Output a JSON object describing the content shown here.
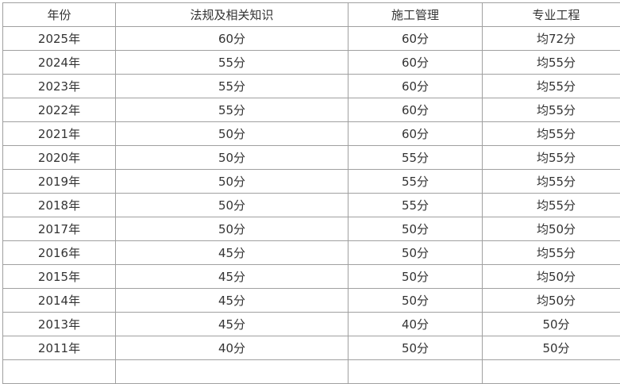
{
  "table": {
    "headers": [
      "年份",
      "法规及相关知识",
      "施工管理",
      "专业工程"
    ],
    "rows": [
      [
        "2025年",
        "60分",
        "60分",
        "均72分"
      ],
      [
        "2024年",
        "55分",
        "60分",
        "均55分"
      ],
      [
        "2023年",
        "55分",
        "60分",
        "均55分"
      ],
      [
        "2022年",
        "55分",
        "60分",
        "均55分"
      ],
      [
        "2021年",
        "50分",
        "60分",
        "均55分"
      ],
      [
        "2020年",
        "50分",
        "55分",
        "均55分"
      ],
      [
        "2019年",
        "50分",
        "55分",
        "均55分"
      ],
      [
        "2018年",
        "50分",
        "55分",
        "均55分"
      ],
      [
        "2017年",
        "50分",
        "50分",
        "均50分"
      ],
      [
        "2016年",
        "45分",
        "50分",
        "均55分"
      ],
      [
        "2015年",
        "45分",
        "50分",
        "均50分"
      ],
      [
        "2014年",
        "45分",
        "50分",
        "均50分"
      ],
      [
        "2013年",
        "45分",
        "40分",
        "50分"
      ],
      [
        "2011年",
        "40分",
        "50分",
        "50分"
      ]
    ]
  }
}
